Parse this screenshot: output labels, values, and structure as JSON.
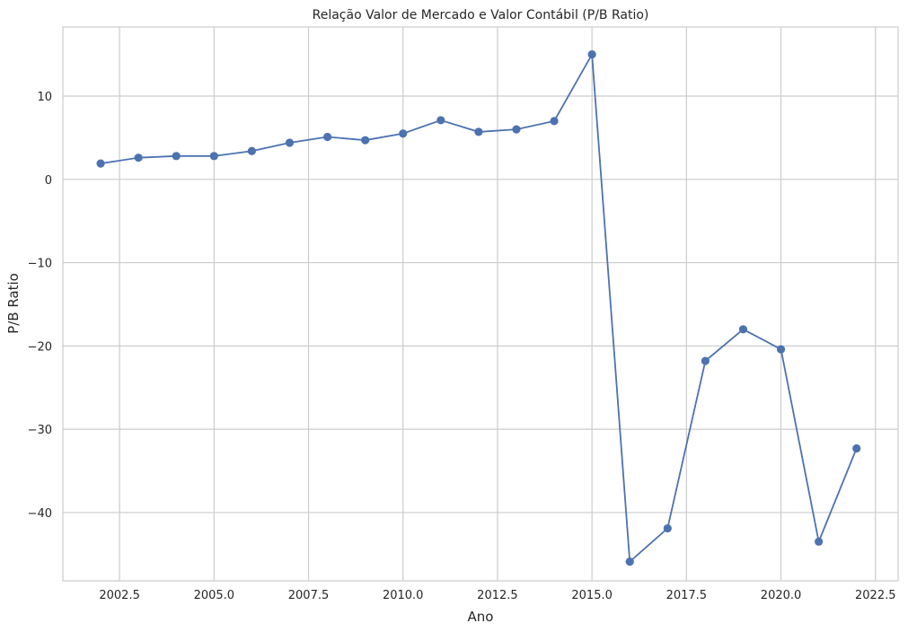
{
  "chart_data": {
    "type": "line",
    "title": "Relação Valor de Mercado e Valor Contábil (P/B Ratio)",
    "xlabel": "Ano",
    "ylabel": "P/B Ratio",
    "xlim": [
      2001.0,
      2023.1
    ],
    "ylim": [
      -48.2,
      18.3
    ],
    "x_ticks": [
      2002.5,
      2005.0,
      2007.5,
      2010.0,
      2012.5,
      2015.0,
      2017.5,
      2020.0,
      2022.5
    ],
    "x_tick_labels": [
      "2002.5",
      "2005.0",
      "2007.5",
      "2010.0",
      "2012.5",
      "2015.0",
      "2017.5",
      "2020.0",
      "2022.5"
    ],
    "y_ticks": [
      10,
      0,
      -10,
      -20,
      -30,
      -40
    ],
    "y_tick_labels": [
      "10",
      "0",
      "−10",
      "−20",
      "−30",
      "−40"
    ],
    "grid": true,
    "series": [
      {
        "color": "#4c72b0",
        "marker": "circle",
        "x": [
          2002,
          2003,
          2004,
          2005,
          2006,
          2007,
          2008,
          2009,
          2010,
          2011,
          2012,
          2013,
          2014,
          2015,
          2016,
          2017,
          2018,
          2019,
          2020,
          2021,
          2022
        ],
        "values": [
          1.9,
          2.6,
          2.8,
          2.8,
          3.4,
          4.4,
          5.1,
          4.7,
          5.5,
          7.1,
          5.7,
          6.0,
          7.0,
          15.0,
          -45.9,
          -41.9,
          -21.8,
          -18.0,
          -20.4,
          -43.5,
          -32.3
        ]
      }
    ]
  }
}
